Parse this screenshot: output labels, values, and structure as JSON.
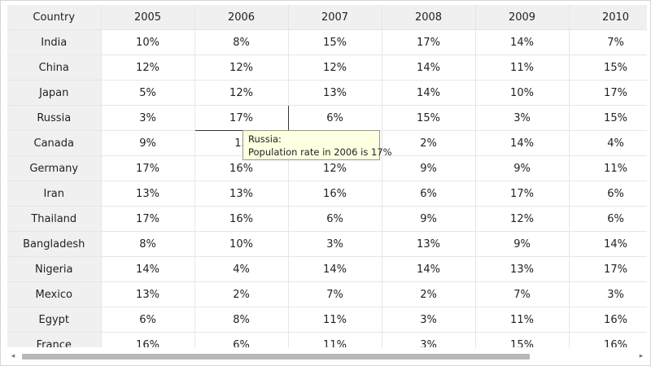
{
  "table": {
    "header": [
      "Country",
      "2005",
      "2006",
      "2007",
      "2008",
      "2009",
      "2010"
    ],
    "rows": [
      [
        "India",
        "10%",
        "8%",
        "15%",
        "17%",
        "14%",
        "7%"
      ],
      [
        "China",
        "12%",
        "12%",
        "12%",
        "14%",
        "11%",
        "15%"
      ],
      [
        "Japan",
        "5%",
        "12%",
        "13%",
        "14%",
        "10%",
        "17%"
      ],
      [
        "Russia",
        "3%",
        "17%",
        "6%",
        "15%",
        "3%",
        "15%"
      ],
      [
        "Canada",
        "9%",
        "15",
        "",
        "2%",
        "14%",
        "4%"
      ],
      [
        "Germany",
        "17%",
        "16%",
        "12%",
        "9%",
        "9%",
        "11%"
      ],
      [
        "Iran",
        "13%",
        "13%",
        "16%",
        "6%",
        "17%",
        "6%"
      ],
      [
        "Thailand",
        "17%",
        "16%",
        "6%",
        "9%",
        "12%",
        "6%"
      ],
      [
        "Bangladesh",
        "8%",
        "10%",
        "3%",
        "13%",
        "9%",
        "14%"
      ],
      [
        "Nigeria",
        "14%",
        "4%",
        "14%",
        "14%",
        "13%",
        "17%"
      ],
      [
        "Mexico",
        "13%",
        "2%",
        "7%",
        "2%",
        "7%",
        "3%"
      ],
      [
        "Egypt",
        "6%",
        "8%",
        "11%",
        "3%",
        "11%",
        "16%"
      ],
      [
        "France",
        "16%",
        "6%",
        "11%",
        "3%",
        "15%",
        "16%"
      ]
    ]
  },
  "tooltip": {
    "title": "Russia:",
    "text": "Population rate in 2006 is 17%"
  },
  "scrollbar": {
    "left_arrow": "◂",
    "right_arrow": "▸"
  }
}
